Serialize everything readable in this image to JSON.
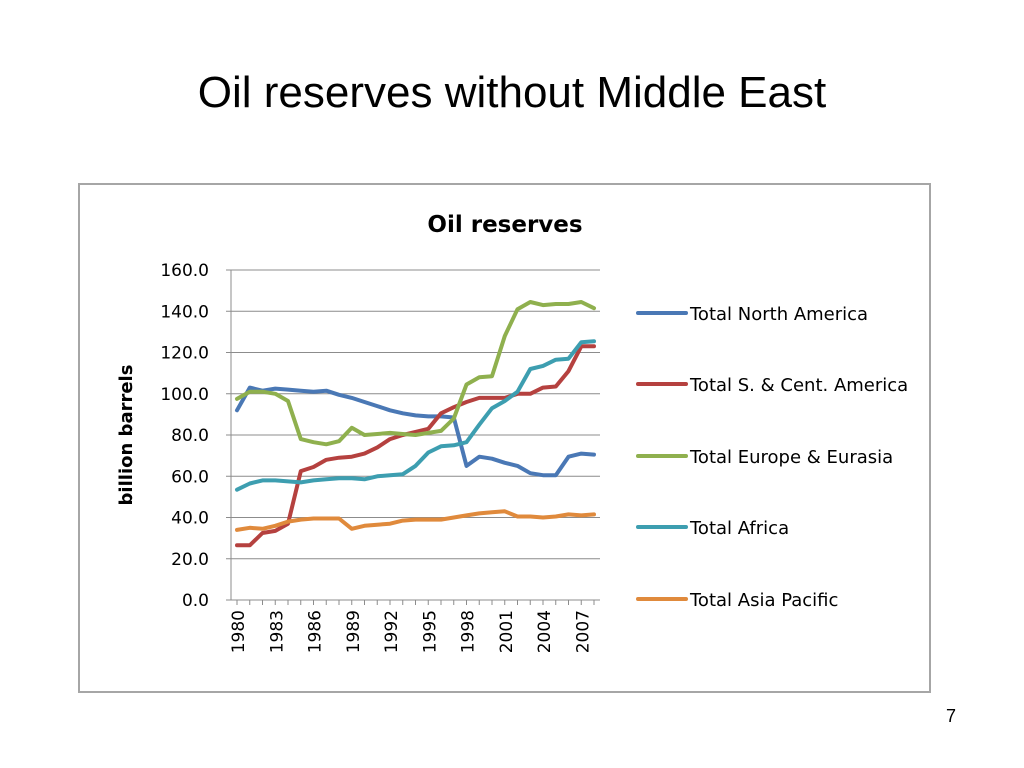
{
  "slide": {
    "title": "Oil reserves without Middle East",
    "page_number": "7"
  },
  "chart_data": {
    "type": "line",
    "title": "Oil reserves",
    "xlabel": "",
    "ylabel": "billion barrels",
    "ylim": [
      0,
      160
    ],
    "yticks": [
      "0.0",
      "20.0",
      "40.0",
      "60.0",
      "80.0",
      "100.0",
      "120.0",
      "140.0",
      "160.0"
    ],
    "xtick_labels": [
      "1980",
      "1983",
      "1986",
      "1989",
      "1992",
      "1995",
      "1998",
      "2001",
      "2004",
      "2007"
    ],
    "grid": true,
    "legend_position": "right",
    "x": [
      1980,
      1981,
      1982,
      1983,
      1984,
      1985,
      1986,
      1987,
      1988,
      1989,
      1990,
      1991,
      1992,
      1993,
      1994,
      1995,
      1996,
      1997,
      1998,
      1999,
      2000,
      2001,
      2002,
      2003,
      2004,
      2005,
      2006,
      2007,
      2008
    ],
    "series": [
      {
        "name": "Total North America",
        "color": "#4a78b5",
        "values": [
          92,
          103,
          101.5,
          102.5,
          102,
          101.5,
          101,
          101.5,
          99.5,
          98,
          96,
          94,
          92,
          90.5,
          89.5,
          89,
          89,
          88.5,
          65,
          69.5,
          68.5,
          66.5,
          65,
          61.5,
          60.5,
          60.5,
          69.5,
          71,
          70.5
        ]
      },
      {
        "name": "Total S. & Cent. America",
        "color": "#b5413f",
        "values": [
          26.5,
          26.5,
          32.5,
          33.5,
          37,
          62.5,
          64.5,
          68,
          69,
          69.5,
          71,
          74,
          78,
          80,
          81.5,
          83,
          90.5,
          93.5,
          96,
          98,
          98,
          98,
          100,
          100,
          103,
          103.5,
          111,
          123,
          123
        ]
      },
      {
        "name": "Total Europe & Eurasia",
        "color": "#8fb04e",
        "values": [
          97.5,
          101,
          101,
          100,
          96.5,
          78,
          76.5,
          75.5,
          77,
          83.5,
          80,
          80.5,
          81,
          80.5,
          80,
          81,
          82,
          88,
          104.5,
          108,
          108.5,
          128,
          141,
          144.5,
          143,
          143.5,
          143.5,
          144.5,
          141.5
        ]
      },
      {
        "name": "Total Africa",
        "color": "#3d9eb0",
        "values": [
          53.5,
          56.5,
          58,
          58,
          57.5,
          57,
          58,
          58.5,
          59,
          59,
          58.5,
          60,
          60.5,
          61,
          65,
          71.5,
          74.5,
          75,
          76.5,
          85,
          93,
          96.5,
          101,
          112,
          113.5,
          116.5,
          117,
          125,
          125.5
        ]
      },
      {
        "name": "Total Asia Pacific",
        "color": "#e08a3c",
        "values": [
          34,
          35,
          34.5,
          36,
          38,
          39,
          39.5,
          39.5,
          39.5,
          34.5,
          36,
          36.5,
          37,
          38.5,
          39,
          39,
          39,
          40,
          41,
          42,
          42.5,
          43,
          40.5,
          40.5,
          40,
          40.5,
          41.5,
          41,
          41.5
        ]
      }
    ]
  }
}
